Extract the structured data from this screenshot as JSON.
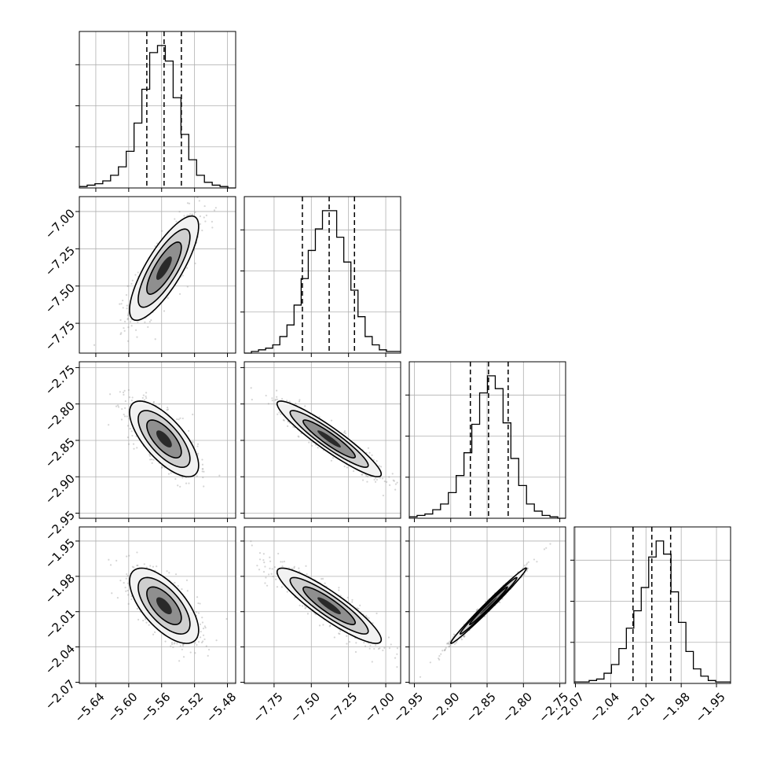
{
  "chart_data": {
    "type": "corner",
    "description_note": "",
    "parameters": [
      {
        "range": [
          -5.66,
          -5.47
        ],
        "median": -5.557,
        "q16": -5.578,
        "q84": -5.536,
        "ticks": [
          -5.64,
          -5.6,
          -5.56,
          -5.52,
          -5.48
        ],
        "tick_labels": [
          "−5.64",
          "−5.60",
          "−5.56",
          "−5.52",
          "−5.48"
        ]
      },
      {
        "range": [
          -7.95,
          -6.9
        ],
        "median": -7.38,
        "q16": -7.56,
        "q84": -7.21,
        "ticks": [
          -7.75,
          -7.5,
          -7.25,
          -7.0
        ],
        "tick_labels": [
          "−7.75",
          "−7.50",
          "−7.25",
          "−7.00"
        ]
      },
      {
        "range": [
          -2.957,
          -2.742
        ],
        "median": -2.848,
        "q16": -2.873,
        "q84": -2.821,
        "ticks": [
          -2.95,
          -2.9,
          -2.85,
          -2.8,
          -2.75
        ],
        "tick_labels": [
          "−2.95",
          "−2.90",
          "−2.85",
          "−2.80",
          "−2.75"
        ]
      },
      {
        "range": [
          -2.071,
          -1.938
        ],
        "median": -2.005,
        "q16": -2.021,
        "q84": -1.989,
        "ticks": [
          -2.07,
          -2.04,
          -2.01,
          -1.98,
          -1.95
        ],
        "tick_labels": [
          "−2.07",
          "−2.04",
          "−2.01",
          "−1.98",
          "−1.95"
        ]
      }
    ],
    "histograms": [
      [
        1,
        2,
        3,
        5,
        9,
        15,
        26,
        46,
        70,
        96,
        101,
        90,
        64,
        38,
        20,
        9,
        4,
        2,
        1,
        0
      ],
      [
        0,
        1,
        2,
        3,
        5,
        10,
        17,
        29,
        45,
        62,
        75,
        86,
        86,
        70,
        55,
        38,
        22,
        10,
        5,
        2,
        1,
        1
      ],
      [
        1,
        2,
        3,
        6,
        10,
        18,
        30,
        46,
        66,
        88,
        100,
        91,
        67,
        42,
        23,
        10,
        5,
        2,
        1,
        0
      ],
      [
        1,
        1,
        2,
        3,
        7,
        13,
        24,
        38,
        50,
        66,
        87,
        98,
        89,
        63,
        42,
        22,
        10,
        5,
        2,
        1,
        1
      ]
    ],
    "correlations": {
      "1-0": 0.8,
      "2-0": -0.7,
      "2-1": -0.93,
      "3-0": -0.65,
      "3-1": -0.9,
      "3-2": 0.99
    },
    "quantile_line_style": "dashed",
    "grid": true
  }
}
